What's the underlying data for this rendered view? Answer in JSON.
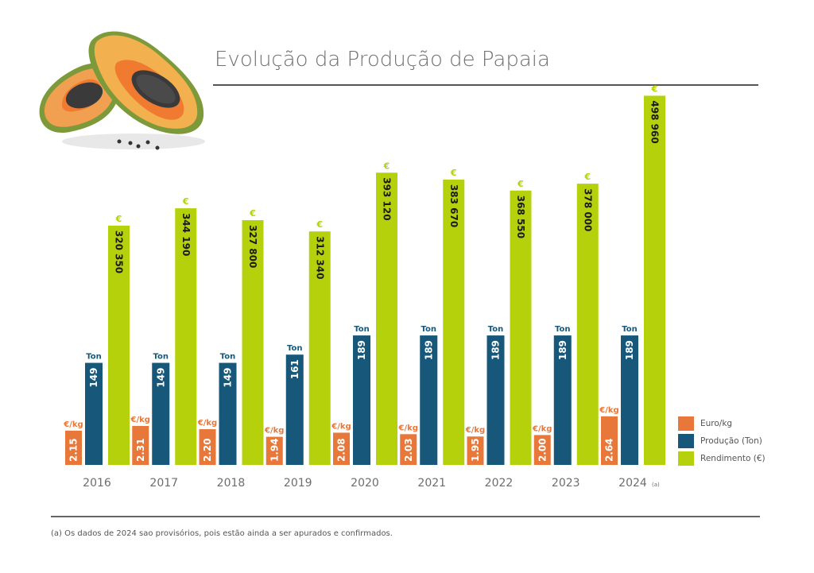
{
  "title": "Evolução da Produção de Papaia",
  "footnote": "(a) Os dados de 2024 sao provisórios, pois estão ainda a ser apurados e confirmados.",
  "illustration": "papaya-halves-illustration",
  "colors": {
    "euro_kg": "#e8773a",
    "producao": "#17587a",
    "rendimento": "#b4d10c",
    "year_text": "#6d6d6d",
    "title_text": "#707070"
  },
  "legend": [
    {
      "label": "Euro/kg",
      "color": "#e8773a"
    },
    {
      "label": "Produção (Ton)",
      "color": "#17587a"
    },
    {
      "label": "Rendimento (€)",
      "color": "#b4d10c"
    }
  ],
  "chart_data": {
    "type": "bar",
    "title": "Evolução da Produção de Papaia",
    "xlabel": "",
    "ylabel": "",
    "grid": false,
    "legend_position": "bottom-right",
    "categories": [
      "2016",
      "2017",
      "2018",
      "2019",
      "2020",
      "2021",
      "2022",
      "2023",
      "2024"
    ],
    "category_notes": [
      "",
      "",
      "",
      "",
      "",
      "",
      "",
      "",
      "(a)"
    ],
    "series": [
      {
        "name": "Euro/kg",
        "unit_label": "€/kg",
        "values": [
          2.15,
          2.31,
          2.2,
          1.94,
          2.08,
          2.03,
          1.95,
          2.0,
          2.64
        ],
        "labels": [
          "2.15",
          "2.31",
          "2.20",
          "1.94",
          "2.08",
          "2.03",
          "1.95",
          "2.00",
          "2.64"
        ]
      },
      {
        "name": "Produção (Ton)",
        "unit_label": "Ton",
        "values": [
          149,
          149,
          149,
          161,
          189,
          189,
          189,
          189,
          189
        ],
        "labels": [
          "149",
          "149",
          "149",
          "161",
          "189",
          "189",
          "189",
          "189",
          "189"
        ]
      },
      {
        "name": "Rendimento (€)",
        "unit_label": "€",
        "values": [
          320350,
          344190,
          327800,
          312340,
          393120,
          383670,
          368550,
          378000,
          498960
        ],
        "labels": [
          "320 350",
          "344 190",
          "327 800",
          "312 340",
          "393 120",
          "383 670",
          "368 550",
          "378 000",
          "498 960"
        ]
      }
    ]
  }
}
